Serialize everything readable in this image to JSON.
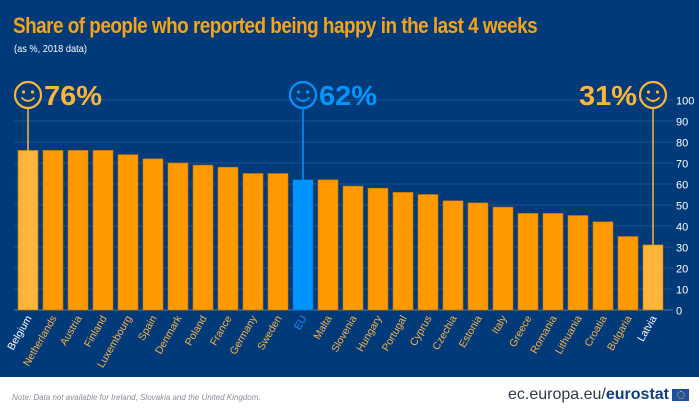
{
  "header": {
    "title": "Share of people who reported being happy in the last 4 weeks",
    "subtitle": "(as %, 2018 data)"
  },
  "footer": {
    "note": "Note: Data not available for Ireland, Slovakia and the United Kingdom.",
    "brand_prefix": "ec.europa.eu/",
    "brand_bold": "eurostat"
  },
  "colors": {
    "background": "#003a78",
    "bar": "#ff9900",
    "highlight": "#ffb53a",
    "eu": "#0094ff",
    "gridline": "#1d5290",
    "title": "#f7a21b"
  },
  "chart_data": {
    "type": "bar",
    "title": "Share of people who reported being happy in the last 4 weeks",
    "subtitle": "(as %, 2018 data)",
    "xlabel": "",
    "ylabel": "",
    "ylim": [
      0,
      100
    ],
    "yticks": [
      0,
      10,
      20,
      30,
      40,
      50,
      60,
      70,
      80,
      90,
      100
    ],
    "y_axis_position": "right",
    "grid": true,
    "categories": [
      "Belgium",
      "Netherlands",
      "Austria",
      "Finland",
      "Luxembourg",
      "Spain",
      "Denmark",
      "Poland",
      "France",
      "Germany",
      "Sweden",
      "EU",
      "Malta",
      "Slovenia",
      "Hungary",
      "Portugal",
      "Cyprus",
      "Czechia",
      "Estonia",
      "Italy",
      "Greece",
      "Romania",
      "Lithuania",
      "Croatia",
      "Bulgaria",
      "Latvia"
    ],
    "values": [
      76,
      76,
      76,
      76,
      74,
      72,
      70,
      69,
      68,
      65,
      65,
      62,
      62,
      59,
      58,
      56,
      55,
      52,
      51,
      49,
      46,
      46,
      45,
      42,
      35,
      31
    ],
    "highlights": {
      "Belgium": "highlight",
      "EU": "eu",
      "Latvia": "highlight"
    },
    "annotations": [
      {
        "category": "Belgium",
        "label": "76%",
        "icon": "smiley-icon",
        "side": "right"
      },
      {
        "category": "EU",
        "label": "62%",
        "icon": "smiley-icon",
        "side": "right"
      },
      {
        "category": "Latvia",
        "label": "31%",
        "icon": "smiley-icon",
        "side": "left"
      }
    ]
  }
}
